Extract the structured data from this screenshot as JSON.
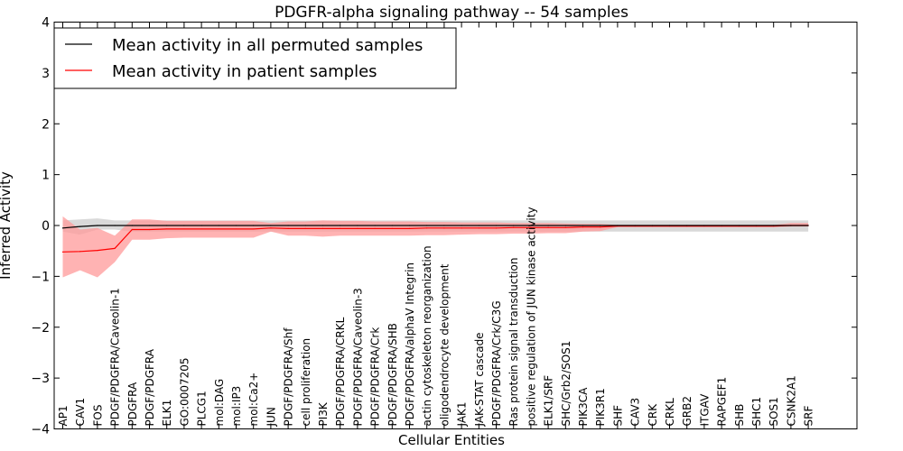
{
  "chart_data": {
    "type": "line",
    "title": "PDGFR-alpha signaling pathway -- 54 samples",
    "xlabel": "Cellular Entities",
    "ylabel": "Inferred Activity",
    "ylim": [
      -4,
      4
    ],
    "yticks": [
      -4,
      -3,
      -2,
      -1,
      0,
      1,
      2,
      3,
      4
    ],
    "legend_position": "top-left",
    "colors": {
      "permuted": "#000000",
      "patient": "#ff0000",
      "patient_band": "#ff9999",
      "permuted_band": "#b3b3b3"
    },
    "categories": [
      "AP1",
      "CAV1",
      "FOS",
      "PDGF/PDGFRA/Caveolin-1",
      "PDGFRA",
      "PDGF/PDGFRA",
      "ELK1",
      "GO:0007205",
      "PLCG1",
      "mol:DAG",
      "mol:IP3",
      "mol:Ca2+",
      "JUN",
      "PDGF/PDGFRA/Shf",
      "cell proliferation",
      "PI3K",
      "PDGF/PDGFRA/CRKL",
      "PDGF/PDGFRA/Caveolin-3",
      "PDGF/PDGFRA/Crk",
      "PDGF/PDGFRA/SHB",
      "PDGF/PDGFRA/alphaV Integrin",
      "actin cytoskeleton reorganization",
      "oligodendrocyte development",
      "JAK1",
      "JAK-STAT cascade",
      "PDGF/PDGFRA/Crk/C3G",
      "Ras protein signal transduction",
      "positive regulation of JUN kinase activity",
      "ELK1/SRF",
      "SHC/Grb2/SOS1",
      "PIK3CA",
      "PIK3R1",
      "SHF",
      "CAV3",
      "CRK",
      "CRKL",
      "GRB2",
      "ITGAV",
      "RAPGEF1",
      "SHB",
      "SHC1",
      "SOS1",
      "CSNK2A1",
      "SRF"
    ],
    "series": [
      {
        "name": "Mean activity in all permuted samples",
        "values": [
          -0.05,
          -0.02,
          0.0,
          0.0,
          0.0,
          0.0,
          0.0,
          0.0,
          0.0,
          0.0,
          0.0,
          0.0,
          0.0,
          0.0,
          0.0,
          0.0,
          0.0,
          0.0,
          0.0,
          0.0,
          0.0,
          0.0,
          0.0,
          0.0,
          0.0,
          0.0,
          0.0,
          0.0,
          0.0,
          0.0,
          0.0,
          0.0,
          0.0,
          0.0,
          0.0,
          0.0,
          0.0,
          0.0,
          0.0,
          0.0,
          0.0,
          0.0,
          0.0,
          0.0
        ],
        "lower": [
          -0.12,
          -0.18,
          -0.08,
          -0.08,
          -0.12,
          -0.12,
          -0.12,
          -0.12,
          -0.12,
          -0.12,
          -0.12,
          -0.12,
          -0.12,
          -0.12,
          -0.12,
          -0.12,
          -0.12,
          -0.12,
          -0.12,
          -0.12,
          -0.12,
          -0.12,
          -0.12,
          -0.12,
          -0.12,
          -0.12,
          -0.12,
          -0.12,
          -0.12,
          -0.12,
          -0.12,
          -0.12,
          -0.12,
          -0.12,
          -0.12,
          -0.12,
          -0.12,
          -0.12,
          -0.12,
          -0.12,
          -0.12,
          -0.12,
          -0.12,
          -0.12
        ],
        "upper": [
          0.1,
          0.12,
          0.14,
          0.1,
          0.1,
          0.1,
          0.1,
          0.1,
          0.1,
          0.1,
          0.1,
          0.1,
          0.1,
          0.1,
          0.1,
          0.1,
          0.1,
          0.1,
          0.1,
          0.1,
          0.1,
          0.1,
          0.1,
          0.1,
          0.1,
          0.1,
          0.1,
          0.1,
          0.1,
          0.1,
          0.1,
          0.1,
          0.1,
          0.1,
          0.1,
          0.1,
          0.1,
          0.1,
          0.1,
          0.1,
          0.1,
          0.1,
          0.1,
          0.1
        ]
      },
      {
        "name": "Mean activity in patient samples",
        "values": [
          -0.52,
          -0.51,
          -0.49,
          -0.45,
          -0.08,
          -0.08,
          -0.07,
          -0.07,
          -0.07,
          -0.07,
          -0.07,
          -0.07,
          -0.05,
          -0.06,
          -0.06,
          -0.06,
          -0.06,
          -0.06,
          -0.06,
          -0.06,
          -0.06,
          -0.05,
          -0.05,
          -0.05,
          -0.05,
          -0.05,
          -0.04,
          -0.04,
          -0.04,
          -0.04,
          -0.03,
          -0.03,
          -0.01,
          -0.01,
          -0.01,
          -0.01,
          -0.01,
          -0.01,
          -0.01,
          -0.01,
          -0.01,
          -0.01,
          0.0,
          0.0
        ],
        "lower": [
          -1.02,
          -0.88,
          -1.02,
          -0.72,
          -0.28,
          -0.28,
          -0.25,
          -0.24,
          -0.24,
          -0.24,
          -0.24,
          -0.24,
          -0.12,
          -0.2,
          -0.2,
          -0.22,
          -0.2,
          -0.2,
          -0.2,
          -0.2,
          -0.2,
          -0.19,
          -0.19,
          -0.18,
          -0.17,
          -0.17,
          -0.16,
          -0.16,
          -0.15,
          -0.15,
          -0.12,
          -0.11,
          -0.03,
          -0.03,
          -0.03,
          -0.03,
          -0.03,
          -0.03,
          -0.03,
          -0.03,
          -0.03,
          -0.03,
          -0.02,
          -0.02
        ],
        "upper": [
          0.18,
          -0.08,
          -0.05,
          -0.2,
          0.12,
          0.12,
          0.09,
          0.09,
          0.09,
          0.09,
          0.09,
          0.09,
          0.05,
          0.08,
          0.08,
          0.1,
          0.09,
          0.09,
          0.08,
          0.08,
          0.08,
          0.07,
          0.07,
          0.06,
          0.06,
          0.06,
          0.05,
          0.05,
          0.05,
          0.04,
          0.03,
          0.03,
          0.01,
          0.01,
          0.01,
          0.01,
          0.01,
          0.01,
          0.01,
          0.01,
          0.01,
          0.01,
          0.05,
          0.05
        ]
      }
    ]
  }
}
